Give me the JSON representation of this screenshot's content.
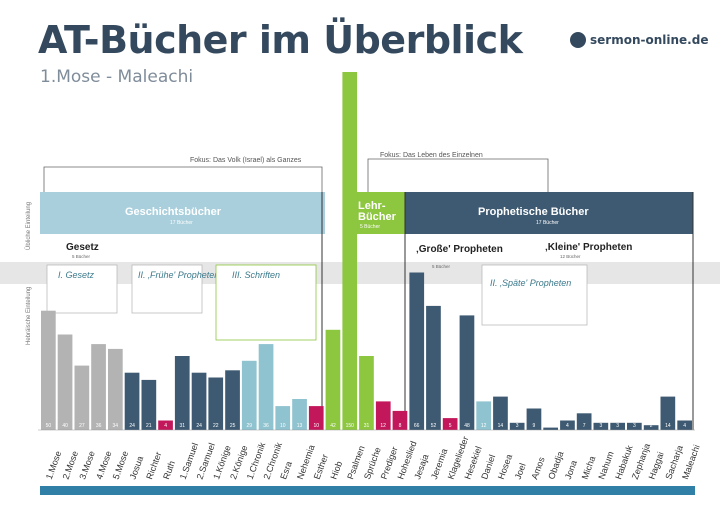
{
  "header": {
    "title": "AT-Bücher im Überblick",
    "subtitle": "1.Mose - Maleachi",
    "brand": "sermon-online.de"
  },
  "fokus": {
    "left": "Fokus: Das Volk (Israel) als Ganzes",
    "right": "Fokus: Das Leben des Einzelnen"
  },
  "side_labels": {
    "top": "Übliche Einteilung",
    "bottom": "Hebräische Einteilung"
  },
  "sections": [
    {
      "name": "Geschichtsbücher",
      "sub": "17 Bücher",
      "color": "#a9cfdc"
    },
    {
      "name": "Lehr-\nBücher",
      "sub": "5 Bücher",
      "color": "#8dc63f"
    },
    {
      "name": "Prophetische Bücher",
      "sub": "17 Bücher",
      "color": "#3d5a72"
    }
  ],
  "groups": {
    "gesetz": {
      "title": "Gesetz",
      "sub": "5 Bücher"
    },
    "grosse": {
      "title": "‚Große' Propheten",
      "sub": "5 Bücher"
    },
    "kleine": {
      "title": "‚Kleine' Propheten",
      "sub": "12 Bücher"
    }
  },
  "boxes": {
    "gesetz_box": "I. Gesetz",
    "fruehe": "II. ‚Frühe' Propheten",
    "schriften": "III. Schriften",
    "spaete": "II. ‚Späte' Propheten"
  },
  "chart_data": {
    "type": "bar",
    "categories": [
      "1.Mose",
      "2.Mose",
      "3.Mose",
      "4.Mose",
      "5.Mose",
      "Josua",
      "Richter",
      "Ruth",
      "1.Samuel",
      "2.Samuel",
      "1.Könige",
      "2.Könige",
      "1.Chronik",
      "2.Chronik",
      "Esra",
      "Nehemia",
      "Esther",
      "Hiob",
      "Psalmen",
      "Sprüche",
      "Prediger",
      "Hoheslied",
      "Jesaja",
      "Jeremia",
      "Klagelieder",
      "Hesekiel",
      "Daniel",
      "Hosea",
      "Joel",
      "Amos",
      "Obadja",
      "Jona",
      "Micha",
      "Nahum",
      "Habakuk",
      "Zephanja",
      "Haggai",
      "Sacharja",
      "Maleachi"
    ],
    "values": [
      50,
      40,
      27,
      36,
      34,
      24,
      21,
      4,
      31,
      24,
      22,
      25,
      29,
      36,
      10,
      13,
      10,
      42,
      150,
      31,
      12,
      8,
      66,
      52,
      5,
      48,
      12,
      14,
      3,
      9,
      1,
      4,
      7,
      3,
      3,
      3,
      2,
      14,
      4
    ],
    "colors": [
      "#b3b3b3",
      "#b3b3b3",
      "#b3b3b3",
      "#b3b3b3",
      "#b3b3b3",
      "#3d5a72",
      "#3d5a72",
      "#c2185b",
      "#3d5a72",
      "#3d5a72",
      "#3d5a72",
      "#3d5a72",
      "#8ec3cf",
      "#8ec3cf",
      "#8ec3cf",
      "#8ec3cf",
      "#c2185b",
      "#8dc63f",
      "#8dc63f",
      "#8dc63f",
      "#c2185b",
      "#c2185b",
      "#3d5a72",
      "#3d5a72",
      "#c2185b",
      "#3d5a72",
      "#8ec3cf",
      "#3d5a72",
      "#3d5a72",
      "#3d5a72",
      "#3d5a72",
      "#3d5a72",
      "#3d5a72",
      "#3d5a72",
      "#3d5a72",
      "#3d5a72",
      "#3d5a72",
      "#3d5a72",
      "#3d5a72"
    ],
    "ylim": [
      0,
      150
    ]
  }
}
